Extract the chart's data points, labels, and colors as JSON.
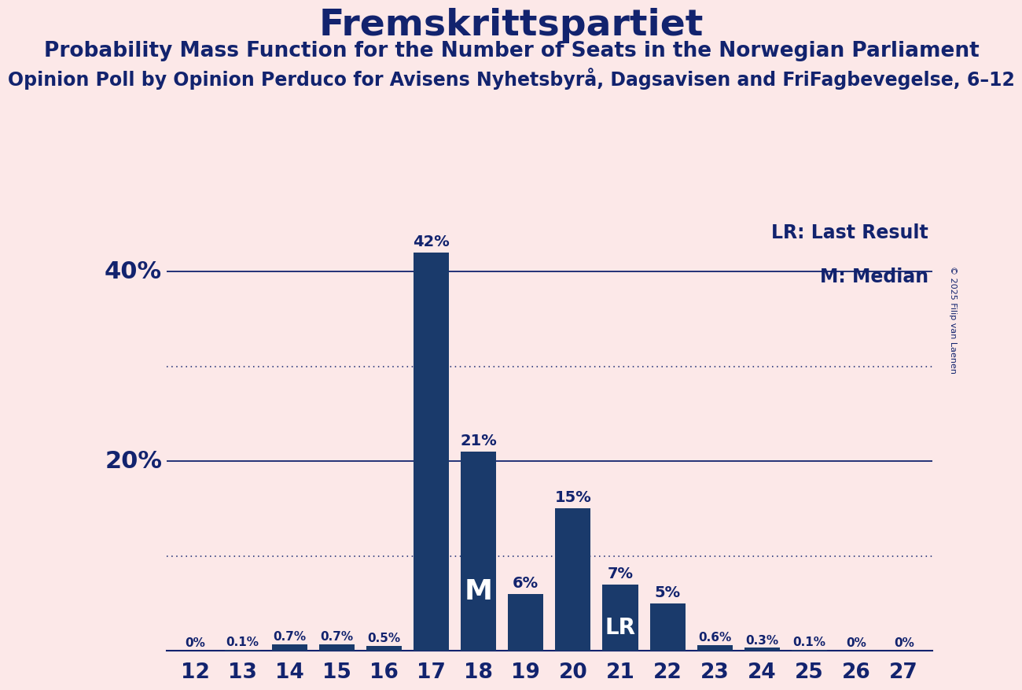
{
  "title": "Fremskrittspartiet",
  "subtitle1": "Probability Mass Function for the Number of Seats in the Norwegian Parliament",
  "subtitle2": "Opinion Poll by Opinion Perduco for Avisens Nyhetsbyrå, Dagsavisen and FriFagbevegelse, 6–12",
  "copyright": "© 2025 Filip van Laenen",
  "categories": [
    12,
    13,
    14,
    15,
    16,
    17,
    18,
    19,
    20,
    21,
    22,
    23,
    24,
    25,
    26,
    27
  ],
  "values": [
    0.0,
    0.1,
    0.7,
    0.7,
    0.5,
    42.0,
    21.0,
    6.0,
    15.0,
    7.0,
    5.0,
    0.6,
    0.3,
    0.1,
    0.0,
    0.0
  ],
  "bar_color": "#1a3a6b",
  "background_color": "#fce8e8",
  "text_color": "#12236e",
  "median_seat": 18,
  "lr_seat": 21,
  "legend_lr": "LR: Last Result",
  "legend_m": "M: Median",
  "dotted_lines": [
    10,
    30
  ],
  "solid_lines": [
    20,
    40
  ],
  "ylim": [
    0,
    46
  ],
  "title_fontsize": 34,
  "subtitle1_fontsize": 19,
  "subtitle2_fontsize": 17
}
